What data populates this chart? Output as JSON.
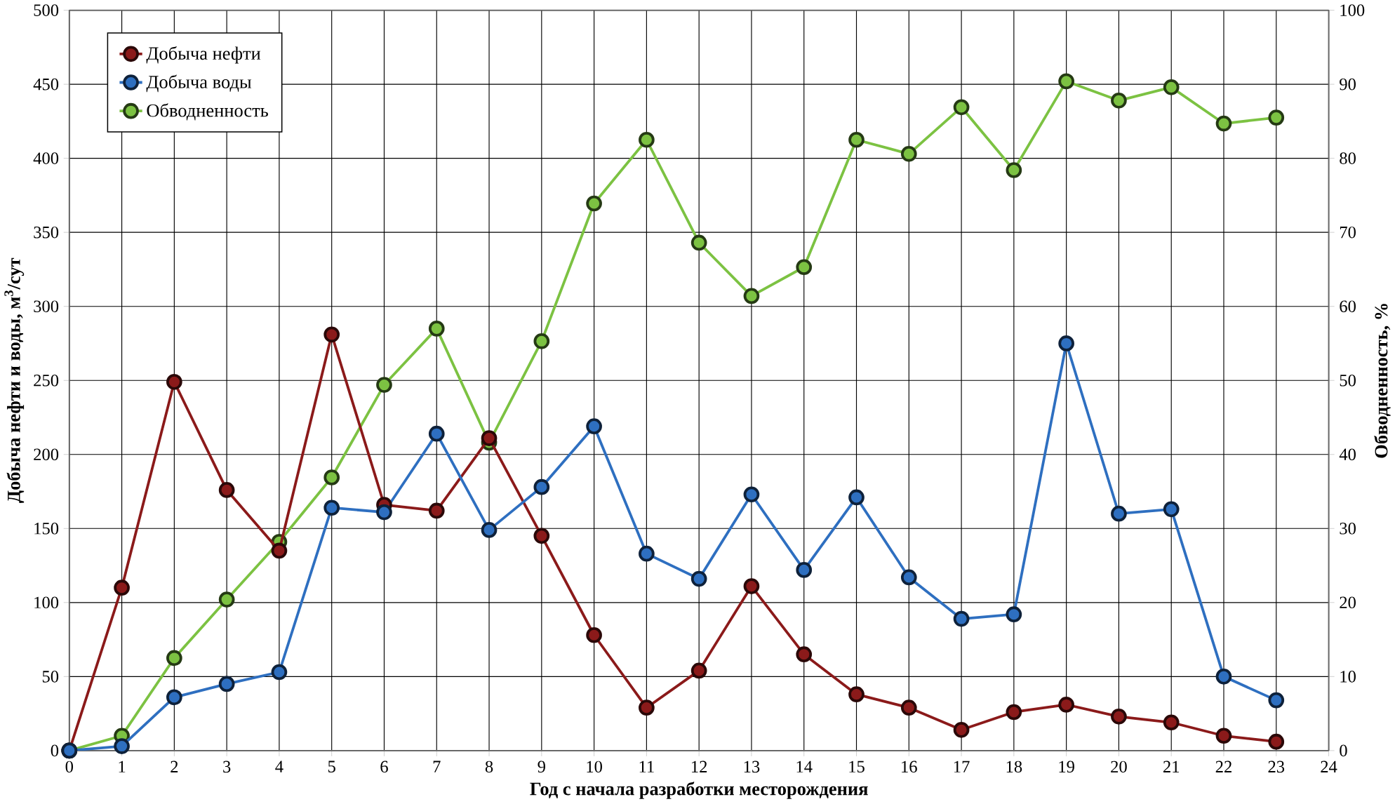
{
  "chart_data": {
    "type": "line",
    "xlabel": "Год с начала разработки месторождения",
    "ylabel": "Добыча нефти и воды, м$^{3}$/сут",
    "y2label": "Обводненность, %",
    "x": [
      0,
      1,
      2,
      3,
      4,
      5,
      6,
      7,
      8,
      9,
      10,
      11,
      12,
      13,
      14,
      15,
      16,
      17,
      18,
      19,
      20,
      21,
      22,
      23
    ],
    "xlim": [
      0,
      24
    ],
    "xticks": [
      0,
      1,
      2,
      3,
      4,
      5,
      6,
      7,
      8,
      9,
      10,
      11,
      12,
      13,
      14,
      15,
      16,
      17,
      18,
      19,
      20,
      21,
      22,
      23,
      24
    ],
    "ylim": [
      0,
      500
    ],
    "yticks": [
      0,
      50,
      100,
      150,
      200,
      250,
      300,
      350,
      400,
      450,
      500
    ],
    "y2lim": [
      0,
      100
    ],
    "y2ticks": [
      0,
      10,
      20,
      30,
      40,
      50,
      60,
      70,
      80,
      90,
      100
    ],
    "grid": true,
    "legend": "top left",
    "marker": "circle",
    "line_style": "solid",
    "series": [
      {
        "name": "Добыча нефти",
        "color": "#8b1a1a",
        "values": [
          0,
          110,
          249,
          176,
          135,
          281,
          166,
          162,
          211,
          145,
          78,
          29,
          54,
          111,
          65,
          38,
          29,
          14,
          26,
          31,
          23,
          19,
          10,
          6
        ]
      },
      {
        "name": "Добыча воды",
        "color": "#2e6fc0",
        "values": [
          0,
          3,
          36,
          45,
          53,
          164,
          161,
          214,
          149,
          178,
          219,
          133,
          116,
          173,
          122,
          171,
          117,
          89,
          92,
          275,
          160,
          163,
          50,
          34
        ]
      },
      {
        "name": "Обводненность",
        "color": "#7cc242",
        "axis": "y2",
        "values": [
          0,
          2,
          12.5,
          20.4,
          28.2,
          36.9,
          49.4,
          57,
          41.6,
          55.3,
          73.9,
          82.5,
          68.6,
          61.4,
          65.3,
          82.5,
          80.6,
          86.9,
          78.4,
          90.4,
          87.8,
          89.6,
          84.7,
          85.5
        ]
      }
    ]
  }
}
